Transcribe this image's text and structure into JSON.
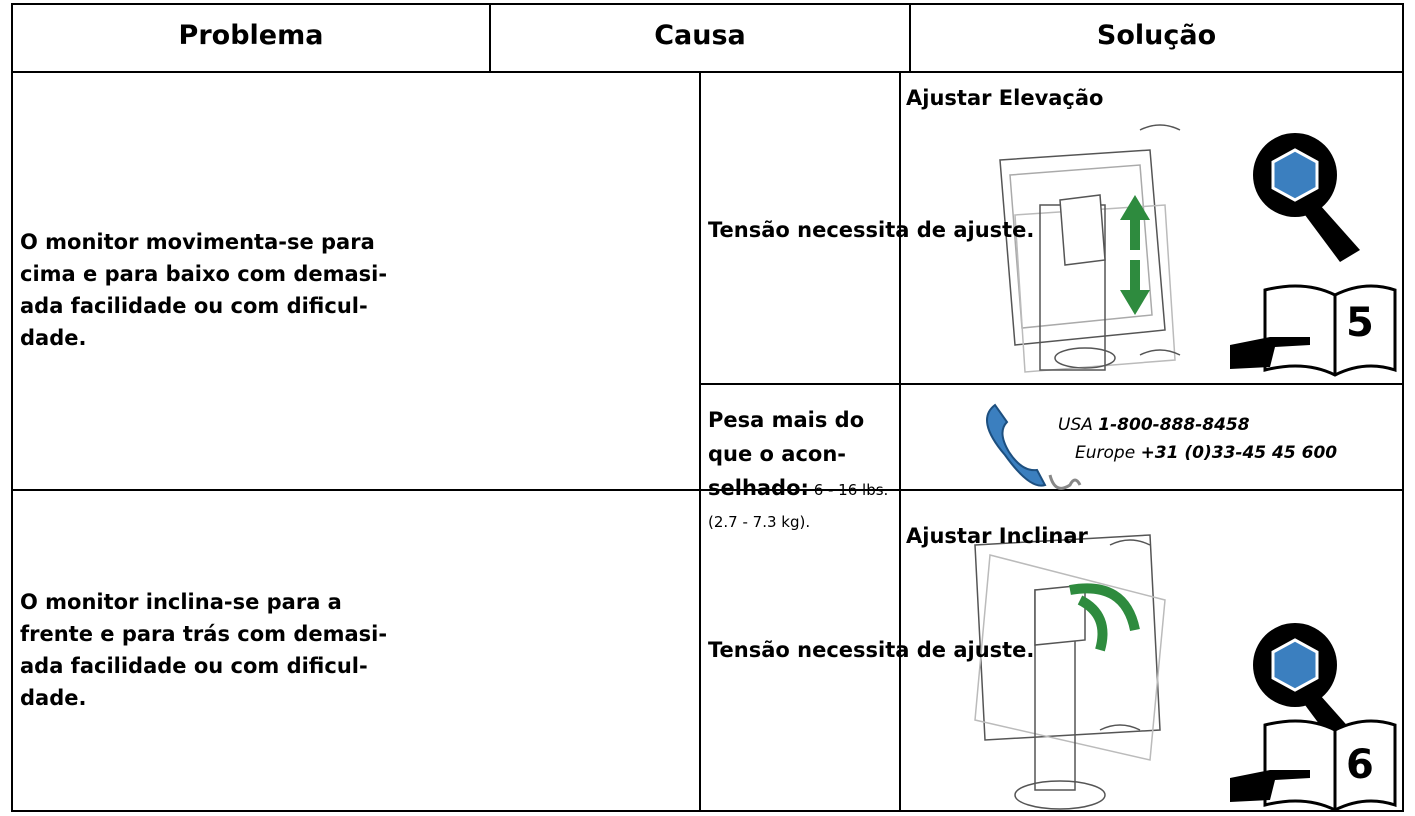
{
  "header": {
    "columns": [
      "Problema",
      "Causa",
      "Solução"
    ]
  },
  "rows": [
    {
      "problem": "O monitor movimenta-se para\ncima e para baixo com demasi-\nada facilidade ou com dificul-\ndade.",
      "causes": [
        {
          "cause": "Tensão necessita de ajuste.",
          "solution_title": "Ajustar Elevação",
          "page": "5"
        },
        {
          "cause_bold": "Pesa mais do que o acon-\nselhado:",
          "cause_detail": " 6 - 16 lbs. (2.7 - 7.3 kg).",
          "phone": {
            "usa_label": "USA",
            "usa_number": "1-800-888-8458",
            "europe_label": "Europe",
            "europe_number": "+31 (0)33-45 45 600"
          }
        }
      ]
    },
    {
      "problem": "O monitor inclina-se para a\nfrente e para trás com demasi-\nada facilidade ou com dificul-\ndade.",
      "causes": [
        {
          "cause": "Tensão necessita de ajuste.",
          "solution_title": "Ajustar Inclinar",
          "page": "6"
        }
      ]
    }
  ]
}
